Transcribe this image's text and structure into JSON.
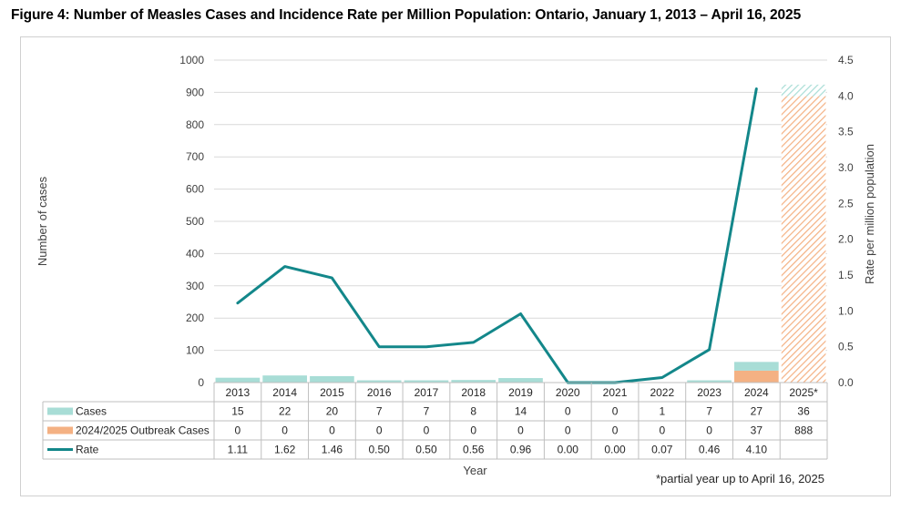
{
  "title": "Figure 4: Number of Measles Cases and Incidence Rate per Million Population: Ontario, January 1, 2013 – April 16, 2025",
  "footnote": "*partial year up to April 16, 2025",
  "colors": {
    "cases": "#a8ddd6",
    "outbreak": "#f4b183",
    "rate": "#13878a",
    "grid": "#d9d9d9",
    "text": "#404040"
  },
  "chart_data": {
    "type": "bar",
    "categories": [
      "2013",
      "2014",
      "2015",
      "2016",
      "2017",
      "2018",
      "2019",
      "2020",
      "2021",
      "2022",
      "2023",
      "2024",
      "2025*"
    ],
    "xlabel": "Year",
    "ylabel": "Number of cases",
    "y2label": "Rate per million population",
    "ylim": [
      0,
      1000
    ],
    "y2lim": [
      0,
      4.5
    ],
    "yticks": [
      "0",
      "100",
      "200",
      "300",
      "400",
      "500",
      "600",
      "700",
      "800",
      "900",
      "1000"
    ],
    "y2ticks": [
      "0.0",
      "0.5",
      "1.0",
      "1.5",
      "2.0",
      "2.5",
      "3.0",
      "3.5",
      "4.0",
      "4.5"
    ],
    "grid": true,
    "legend_position": "data-table-left",
    "series": [
      {
        "name": "Cases",
        "kind": "stacked-bar",
        "values": [
          15,
          22,
          20,
          7,
          7,
          8,
          14,
          0,
          0,
          1,
          7,
          27,
          36
        ],
        "labels": [
          "15",
          "22",
          "20",
          "7",
          "7",
          "8",
          "14",
          "0",
          "0",
          "1",
          "7",
          "27",
          "36"
        ]
      },
      {
        "name": "2024/2025 Outbreak Cases",
        "kind": "stacked-bar",
        "values": [
          0,
          0,
          0,
          0,
          0,
          0,
          0,
          0,
          0,
          0,
          0,
          37,
          888
        ],
        "labels": [
          "0",
          "0",
          "0",
          "0",
          "0",
          "0",
          "0",
          "0",
          "0",
          "0",
          "0",
          "37",
          "888"
        ]
      },
      {
        "name": "Rate",
        "kind": "line",
        "axis": "right",
        "values": [
          1.11,
          1.62,
          1.46,
          0.5,
          0.5,
          0.56,
          0.96,
          0.0,
          0.0,
          0.07,
          0.46,
          4.1,
          null
        ],
        "labels": [
          "1.11",
          "1.62",
          "1.46",
          "0.50",
          "0.50",
          "0.56",
          "0.96",
          "0.00",
          "0.00",
          "0.07",
          "0.46",
          "4.10",
          ""
        ]
      }
    ]
  }
}
